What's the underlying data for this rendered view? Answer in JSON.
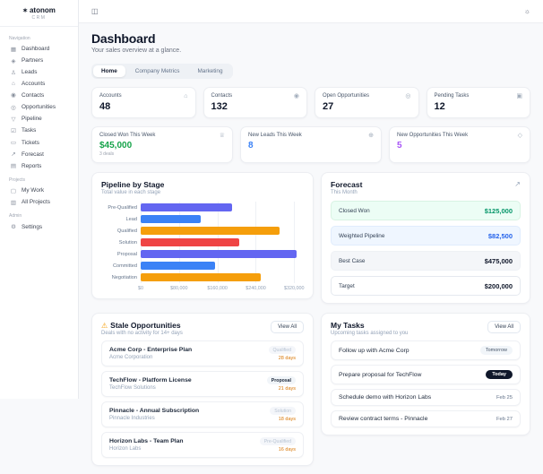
{
  "app": {
    "logo": "atonom",
    "logo_sub": "CRM",
    "logo_icon": "✶"
  },
  "topbar": {
    "sidebar_toggle_icon": "◫",
    "theme_icon": "☼"
  },
  "sidebar": {
    "sections": [
      {
        "label": "Navigation",
        "items": [
          {
            "label": "Dashboard",
            "icon": "▦",
            "icon_name": "dashboard-grid-icon"
          },
          {
            "label": "Partners",
            "icon": "◈",
            "icon_name": "partners-icon"
          },
          {
            "label": "Leads",
            "icon": "♙",
            "icon_name": "leads-person-icon"
          },
          {
            "label": "Accounts",
            "icon": "⌂",
            "icon_name": "accounts-building-icon"
          },
          {
            "label": "Contacts",
            "icon": "◉",
            "icon_name": "contacts-users-icon"
          },
          {
            "label": "Opportunities",
            "icon": "◎",
            "icon_name": "opportunities-target-icon"
          },
          {
            "label": "Pipeline",
            "icon": "▽",
            "icon_name": "pipeline-funnel-icon"
          },
          {
            "label": "Tasks",
            "icon": "☑",
            "icon_name": "tasks-check-icon"
          },
          {
            "label": "Tickets",
            "icon": "▭",
            "icon_name": "tickets-icon"
          },
          {
            "label": "Forecast",
            "icon": "↗",
            "icon_name": "forecast-trend-icon"
          },
          {
            "label": "Reports",
            "icon": "▤",
            "icon_name": "reports-doc-icon"
          }
        ]
      },
      {
        "label": "Projects",
        "items": [
          {
            "label": "My Work",
            "icon": "▢",
            "icon_name": "my-work-briefcase-icon"
          },
          {
            "label": "All Projects",
            "icon": "▥",
            "icon_name": "all-projects-folder-icon"
          }
        ]
      },
      {
        "label": "Admin",
        "items": [
          {
            "label": "Settings",
            "icon": "⚙",
            "icon_name": "settings-gear-icon"
          }
        ]
      }
    ]
  },
  "header": {
    "title": "Dashboard",
    "subtitle": "Your sales overview at a glance."
  },
  "tabs": [
    {
      "label": "Home",
      "active": true
    },
    {
      "label": "Company Metrics",
      "active": false
    },
    {
      "label": "Marketing",
      "active": false
    }
  ],
  "stats": [
    {
      "label": "Accounts",
      "value": "48",
      "icon": "⌂",
      "icon_name": "building-icon"
    },
    {
      "label": "Contacts",
      "value": "132",
      "icon": "◉",
      "icon_name": "users-icon"
    },
    {
      "label": "Open Opportunities",
      "value": "27",
      "icon": "◎",
      "icon_name": "target-icon"
    },
    {
      "label": "Pending Tasks",
      "value": "12",
      "icon": "▣",
      "icon_name": "clipboard-icon"
    }
  ],
  "week_stats": [
    {
      "label": "Closed Won This Week",
      "value": "$45,000",
      "sub": "3 deals",
      "color": "#16a34a",
      "icon": "♕",
      "icon_name": "trophy-icon"
    },
    {
      "label": "New Leads This Week",
      "value": "8",
      "sub": "",
      "color": "#3b82f6",
      "icon": "⊕",
      "icon_name": "user-plus-icon"
    },
    {
      "label": "New Opportunities This Week",
      "value": "5",
      "sub": "",
      "color": "#a855f7",
      "icon": "◇",
      "icon_name": "sparkles-icon"
    }
  ],
  "chart_data": {
    "type": "bar",
    "orientation": "horizontal",
    "title": "Pipeline by Stage",
    "subtitle": "Total value in each stage",
    "categories": [
      "Pre-Qualified",
      "Lead",
      "Qualified",
      "Solution",
      "Proposal",
      "Committed",
      "Negotiation"
    ],
    "values": [
      190000,
      125000,
      290000,
      205000,
      325000,
      155000,
      250000
    ],
    "colors": [
      "#6366f1",
      "#3b82f6",
      "#f59e0b",
      "#ef4444",
      "#6366f1",
      "#3b82f6",
      "#f59e0b"
    ],
    "xlim": [
      0,
      340000
    ],
    "ticks": [
      0,
      80000,
      160000,
      240000,
      320000
    ],
    "tick_labels": [
      "$0",
      "$80,000",
      "$160,000",
      "$240,000",
      "$320,000"
    ],
    "grid": true,
    "legend": false
  },
  "forecast": {
    "title": "Forecast",
    "subtitle": "This Month",
    "icon_name": "trending-up-icon",
    "icon": "↗",
    "rows": [
      {
        "label": "Closed Won",
        "value": "$125,000",
        "bg": "#ecfdf5",
        "border": "#d8f3e3",
        "color": "#059669"
      },
      {
        "label": "Weighted Pipeline",
        "value": "$82,500",
        "bg": "#eff6ff",
        "border": "#e0ecfd",
        "color": "#2563eb"
      },
      {
        "label": "Best Case",
        "value": "$475,000",
        "bg": "#f4f6f9",
        "border": "#eef1f5",
        "color": "#0f172a"
      },
      {
        "label": "Target",
        "value": "$200,000",
        "bg": "#ffffff",
        "border": "#e5e9ef",
        "color": "#0f172a"
      }
    ]
  },
  "stale": {
    "title": "Stale Opportunities",
    "subtitle": "Deals with no activity for 14+ days",
    "view_all": "View All",
    "warning_icon": "⚠",
    "items": [
      {
        "name": "Acme Corp - Enterprise Plan",
        "company": "Acme Corporation",
        "stage": "Qualified",
        "stage_variant": "faint",
        "days": "28 days"
      },
      {
        "name": "TechFlow - Platform License",
        "company": "TechFlow Solutions",
        "stage": "Proposal",
        "stage_variant": "solid",
        "days": "21 days"
      },
      {
        "name": "Pinnacle - Annual Subscription",
        "company": "Pinnacle Industries",
        "stage": "Solution",
        "stage_variant": "faint",
        "days": "18 days"
      },
      {
        "name": "Horizon Labs - Team Plan",
        "company": "Horizon Labs",
        "stage": "Pre-Qualified",
        "stage_variant": "faint",
        "days": "16 days"
      }
    ]
  },
  "tasks": {
    "title": "My Tasks",
    "subtitle": "Upcoming tasks assigned to you",
    "view_all": "View All",
    "items": [
      {
        "label": "Follow up with Acme Corp",
        "due": "Tomorrow",
        "due_variant": "pill-light"
      },
      {
        "label": "Prepare proposal for TechFlow",
        "due": "Today",
        "due_variant": "pill-dark"
      },
      {
        "label": "Schedule demo with Horizon Labs",
        "due": "Feb 25",
        "due_variant": "text"
      },
      {
        "label": "Review contract terms - Pinnacle",
        "due": "Feb 27",
        "due_variant": "text"
      }
    ]
  }
}
